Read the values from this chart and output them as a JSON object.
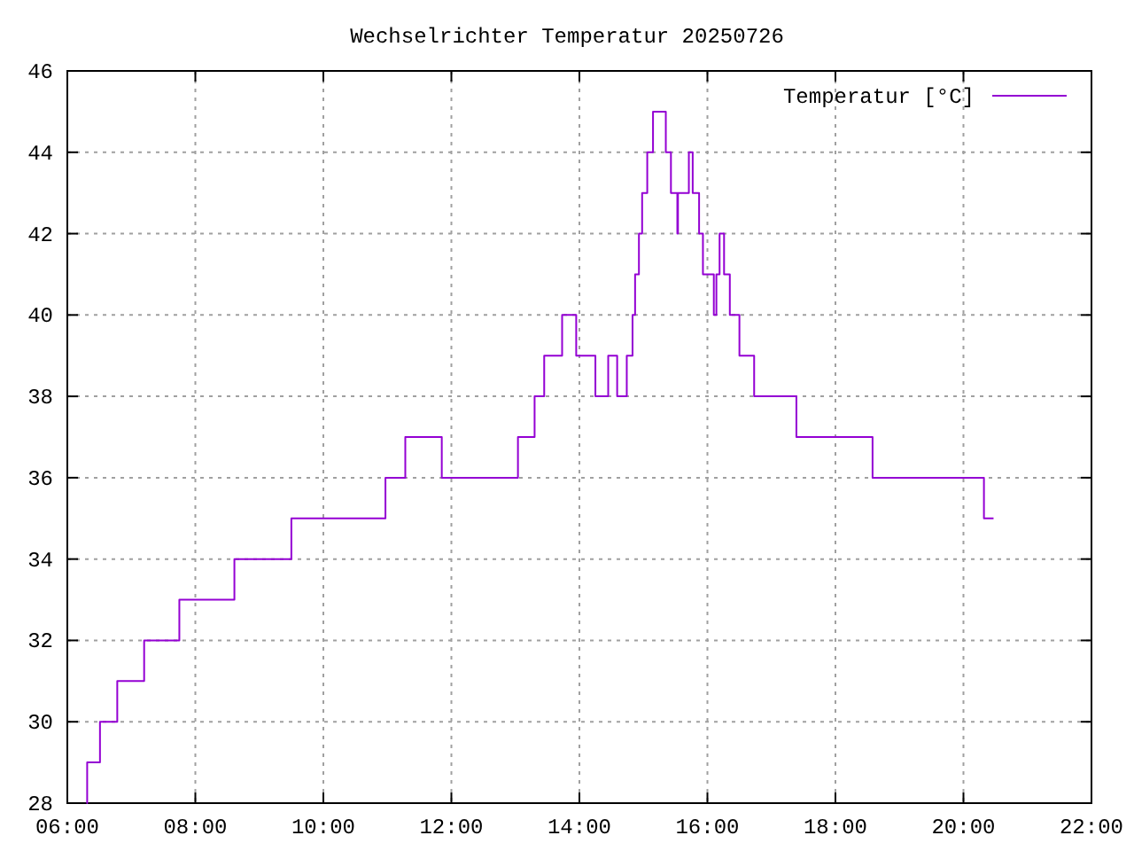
{
  "chart_data": {
    "type": "step",
    "title": "Wechselrichter Temperatur 20250726",
    "x": [
      6.3,
      6.31,
      6.51,
      6.78,
      7.2,
      7.75,
      8.61,
      9.5,
      10.97,
      11.28,
      11.85,
      13.04,
      13.3,
      13.45,
      13.73,
      13.95,
      14.25,
      14.45,
      14.59,
      14.74,
      14.83,
      14.87,
      14.93,
      14.98,
      15.06,
      15.15,
      15.35,
      15.43,
      15.53,
      15.54,
      15.71,
      15.77,
      15.87,
      15.93,
      16.1,
      16.14,
      16.19,
      16.26,
      16.35,
      16.5,
      16.73,
      17.39,
      18.58,
      20.32,
      20.47
    ],
    "series": [
      {
        "name": "Temperatur [°C]",
        "color": "#9400d3",
        "values": [
          28,
          29,
          30,
          31,
          32,
          33,
          34,
          35,
          36,
          37,
          36,
          37,
          38,
          39,
          40,
          39,
          38,
          39,
          38,
          39,
          40,
          41,
          42,
          43,
          44,
          45,
          44,
          43,
          42,
          43,
          44,
          43,
          42,
          41,
          40,
          41,
          42,
          41,
          40,
          39,
          38,
          37,
          36,
          35,
          35
        ]
      }
    ],
    "xlim": [
      6,
      22
    ],
    "xticks": [
      {
        "value": 6,
        "label": "06:00"
      },
      {
        "value": 8,
        "label": "08:00"
      },
      {
        "value": 10,
        "label": "10:00"
      },
      {
        "value": 12,
        "label": "12:00"
      },
      {
        "value": 14,
        "label": "14:00"
      },
      {
        "value": 16,
        "label": "16:00"
      },
      {
        "value": 18,
        "label": "18:00"
      },
      {
        "value": 20,
        "label": "20:00"
      },
      {
        "value": 22,
        "label": "22:00"
      }
    ],
    "ylim": [
      28,
      46
    ],
    "yticks": [
      28,
      30,
      32,
      34,
      36,
      38,
      40,
      42,
      44,
      46
    ],
    "grid": true,
    "legend": "top right",
    "line_style": "solid"
  }
}
